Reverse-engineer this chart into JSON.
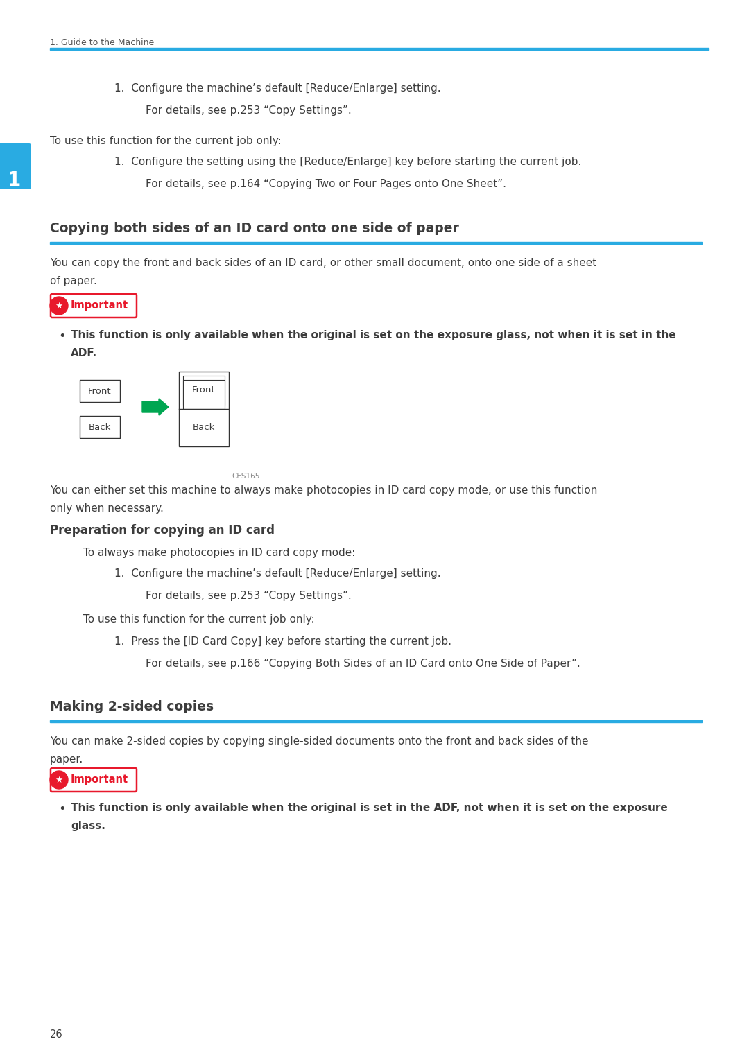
{
  "bg_color": "#ffffff",
  "text_color": "#3c3c3c",
  "blue_line_color": "#29abe2",
  "blue_tab_color": "#29abe2",
  "green_arrow_color": "#00a651",
  "header_text": "1. Guide to the Machine",
  "section1_title": "Copying both sides of an ID card onto one side of paper",
  "section2_title": "Making 2-sided copies",
  "subsection_title": "Preparation for copying an ID card",
  "important_color": "#e8192c",
  "page_number": "26",
  "tab_number": "1",
  "line1": "1.  Configure the machine’s default [Reduce/Enlarge] setting.",
  "line2": "For details, see p.253 “Copy Settings”.",
  "line3": "To use this function for the current job only:",
  "line4": "1.  Configure the setting using the [Reduce/Enlarge] key before starting the current job.",
  "line5": "For details, see p.164 “Copying Two or Four Pages onto One Sheet”.",
  "body1a": "You can copy the front and back sides of an ID card, or other small document, onto one side of a sheet",
  "body1b": "of paper.",
  "bullet1a": "This function is only available when the original is set on the exposure glass, not when it is set in the",
  "bullet1b": "ADF.",
  "ces_label": "CES165",
  "body2a": "You can either set this machine to always make photocopies in ID card copy mode, or use this function",
  "body2b": "only when necessary.",
  "prep_body1": "To always make photocopies in ID card copy mode:",
  "prep_l1": "1.  Configure the machine’s default [Reduce/Enlarge] setting.",
  "prep_l2": "For details, see p.253 “Copy Settings”.",
  "prep_body2": "To use this function for the current job only:",
  "prep_l3": "1.  Press the [ID Card Copy] key before starting the current job.",
  "prep_l4": "For details, see p.166 “Copying Both Sides of an ID Card onto One Side of Paper”.",
  "body3a": "You can make 2-sided copies by copying single-sided documents onto the front and back sides of the",
  "body3b": "paper.",
  "bullet2a": "This function is only available when the original is set in the ADF, not when it is set on the exposure",
  "bullet2b": "glass."
}
